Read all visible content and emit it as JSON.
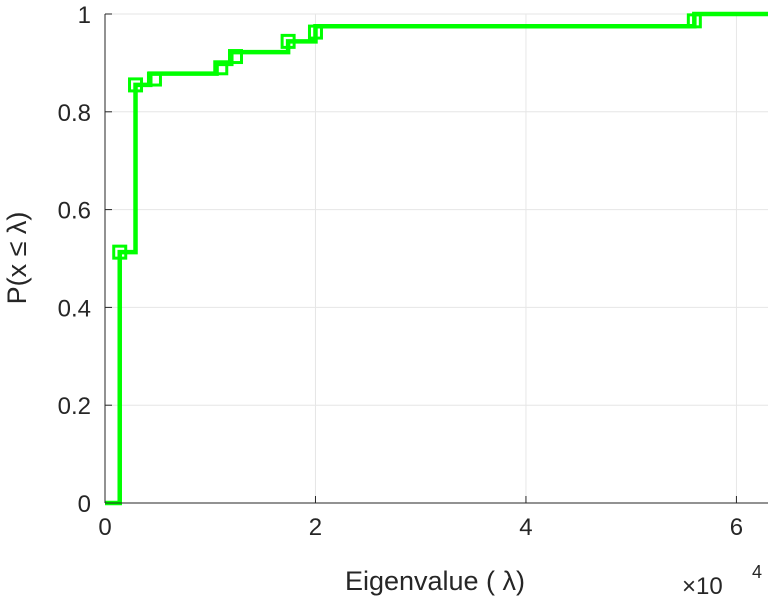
{
  "chart_data": {
    "type": "line",
    "subtype": "step",
    "title": "",
    "xlabel": "Eigenvalue (   λ)",
    "ylabel": "P(x ≤ λ)",
    "x_exponent_label": "×10",
    "x_exponent_power": "4",
    "x_multiplier": 10000,
    "xlim": [
      0,
      6.3
    ],
    "ylim": [
      0,
      1
    ],
    "x_ticks": [
      0,
      2,
      4,
      6
    ],
    "x_tick_labels": [
      "0",
      "2",
      "4",
      "6"
    ],
    "y_ticks": [
      0,
      0.2,
      0.4,
      0.6,
      0.8,
      1
    ],
    "y_tick_labels": [
      "0",
      "0.2",
      "0.4",
      "0.6",
      "0.8",
      "1"
    ],
    "grid": true,
    "color": "#00ff00",
    "series": [
      {
        "steps": [
          {
            "x": 0.0,
            "y": 0.0
          },
          {
            "x": 0.14,
            "y": 0.513
          },
          {
            "x": 0.29,
            "y": 0.855
          },
          {
            "x": 0.43,
            "y": 0.878
          },
          {
            "x": 1.06,
            "y": 0.898
          },
          {
            "x": 1.2,
            "y": 0.922
          },
          {
            "x": 1.74,
            "y": 0.944
          },
          {
            "x": 2.0,
            "y": 0.975
          },
          {
            "x": 5.6,
            "y": 1.0
          },
          {
            "x": 6.3,
            "y": 1.0
          }
        ],
        "markers": [
          {
            "x": 0.14,
            "y": 0.513
          },
          {
            "x": 0.29,
            "y": 0.855
          },
          {
            "x": 0.47,
            "y": 0.867
          },
          {
            "x": 1.1,
            "y": 0.89
          },
          {
            "x": 1.24,
            "y": 0.913
          },
          {
            "x": 1.74,
            "y": 0.944
          },
          {
            "x": 2.0,
            "y": 0.963
          },
          {
            "x": 5.6,
            "y": 0.986
          }
        ]
      }
    ]
  }
}
